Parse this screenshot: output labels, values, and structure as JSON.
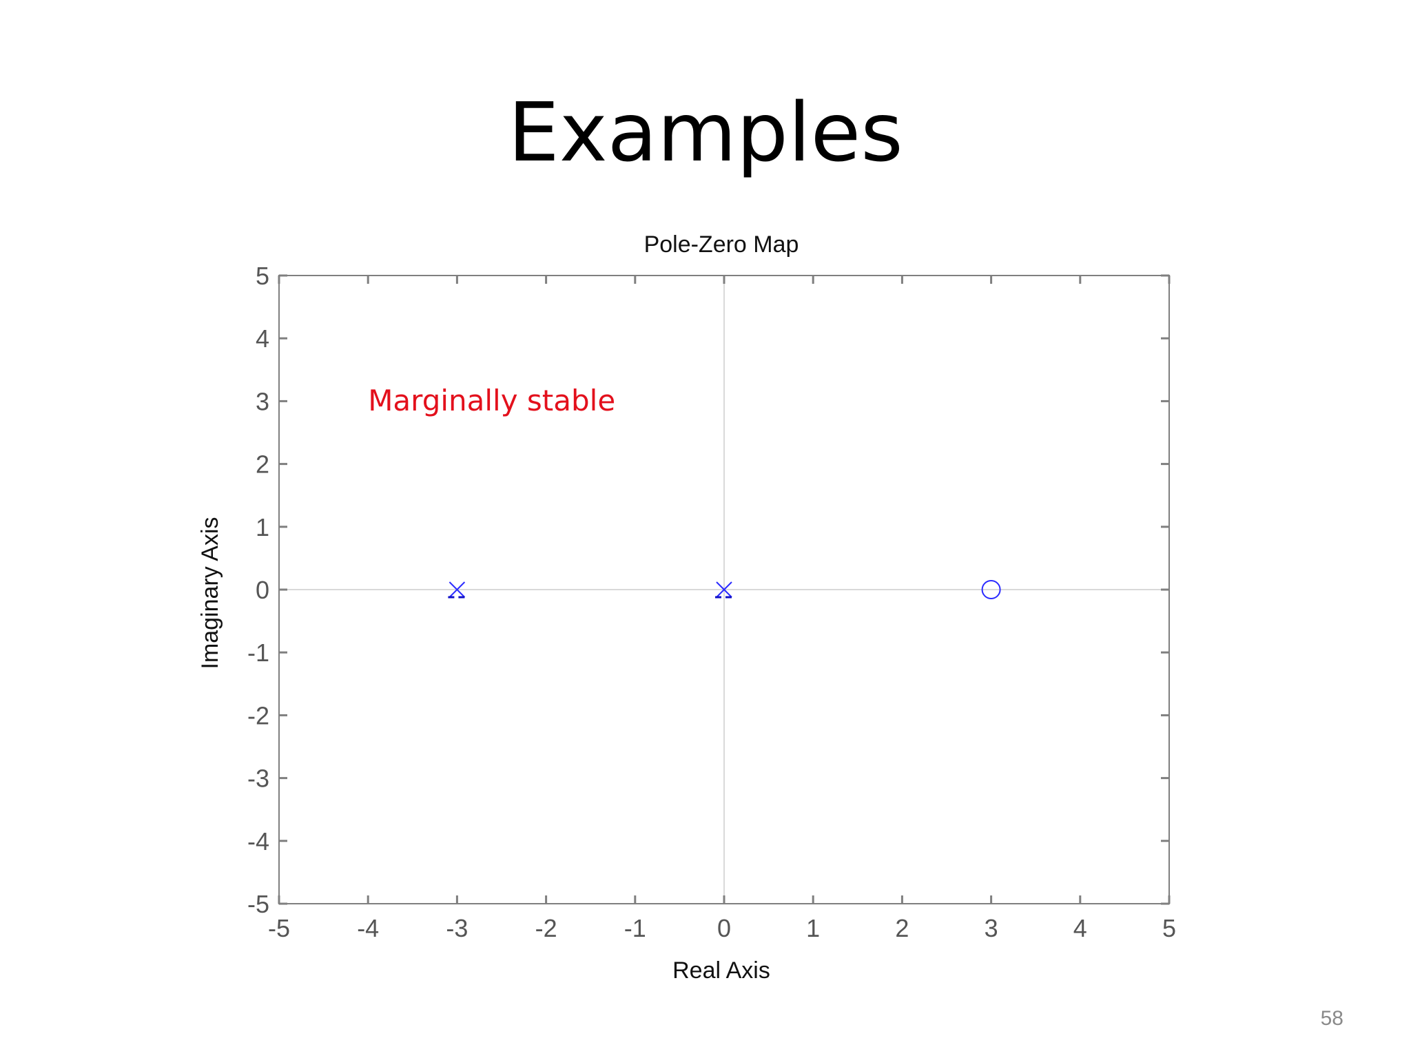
{
  "slide": {
    "title": "Examples",
    "page_number": "58"
  },
  "chart_data": {
    "type": "scatter",
    "title": "Pole-Zero Map",
    "xlabel": "Real Axis",
    "ylabel": "Imaginary Axis",
    "xlim": [
      -5,
      5
    ],
    "ylim": [
      -5,
      5
    ],
    "x_ticks": [
      -5,
      -4,
      -3,
      -2,
      -1,
      0,
      1,
      2,
      3,
      4,
      5
    ],
    "y_ticks": [
      -5,
      -4,
      -3,
      -2,
      -1,
      0,
      1,
      2,
      3,
      4,
      5
    ],
    "x_tick_labels": [
      "-5",
      "-4",
      "-3",
      "-2",
      "-1",
      "0",
      "1",
      "2",
      "3",
      "4",
      "5"
    ],
    "y_tick_labels": [
      "-5",
      "-4",
      "-3",
      "-2",
      "-1",
      "0",
      "1",
      "2",
      "3",
      "4",
      "5"
    ],
    "grid": false,
    "zero_lines": true,
    "series": [
      {
        "marker": "x",
        "points": [
          {
            "x": -3,
            "y": 0
          },
          {
            "x": 0,
            "y": 0
          }
        ]
      },
      {
        "marker": "o",
        "points": [
          {
            "x": 3,
            "y": 0
          }
        ]
      }
    ],
    "annotations": [
      {
        "text": "Marginally stable",
        "x": -4,
        "y": 2.85,
        "color": "#e3101c"
      }
    ],
    "colors": {
      "axis": "#7f7f7f",
      "tick_text": "#555555",
      "label_text": "#111111",
      "zero_line": "#d9d9d9",
      "marker": "#2b2bff",
      "annotation": "#e3101c"
    }
  }
}
